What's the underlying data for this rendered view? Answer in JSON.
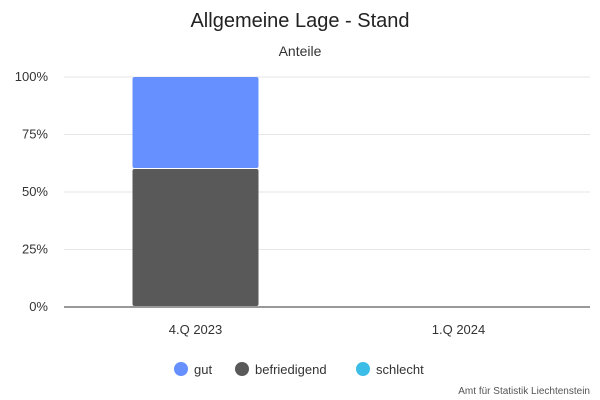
{
  "chart_data": {
    "type": "bar",
    "stacked": true,
    "title": "Allgemeine Lage - Stand",
    "subtitle": "Anteile",
    "categories": [
      "4.Q 2023",
      "1.Q 2024"
    ],
    "y_ticks": [
      "0%",
      "25%",
      "50%",
      "75%",
      "100%"
    ],
    "ylim": [
      0,
      100
    ],
    "grid": true,
    "series": [
      {
        "name": "gut",
        "color": "#6690ff",
        "values": [
          40,
          0
        ]
      },
      {
        "name": "befriedigend",
        "color": "#595959",
        "values": [
          60,
          0
        ]
      },
      {
        "name": "schlecht",
        "color": "#3cbde8",
        "values": [
          0,
          0
        ]
      }
    ],
    "legend_position": "bottom",
    "credit": "Amt für Statistik Liechtenstein"
  }
}
